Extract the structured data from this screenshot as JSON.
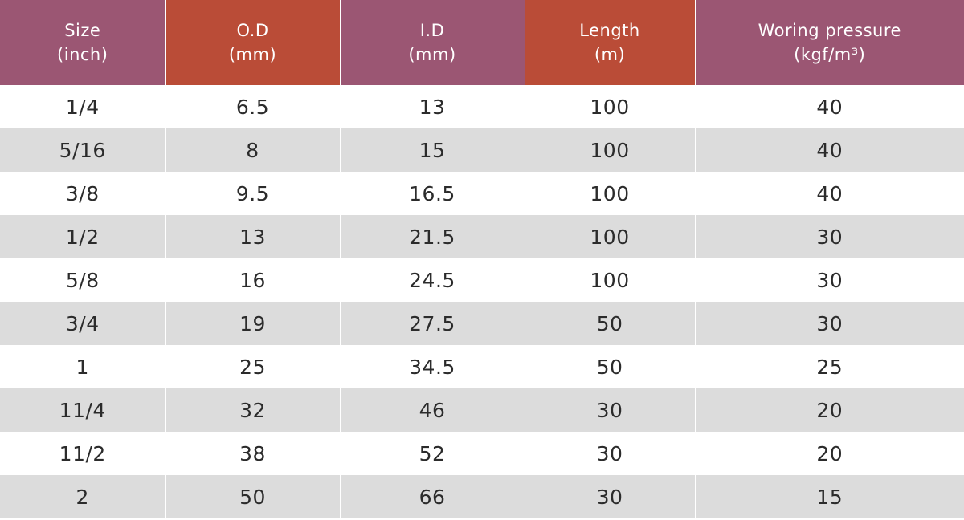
{
  "colors": {
    "header_purple": "#9b5673",
    "header_orange": "#ba4c37",
    "row_stripe": "#dcdcdc"
  },
  "table": {
    "headers": [
      {
        "line1": "Size",
        "line2": "(inch)"
      },
      {
        "line1": "O.D",
        "line2": "(mm)"
      },
      {
        "line1": "I.D",
        "line2": "(mm)"
      },
      {
        "line1": "Length",
        "line2": "(m)"
      },
      {
        "line1": "Woring pressure",
        "line2": "(kgf/m³)"
      }
    ],
    "rows": [
      [
        "1/4",
        "6.5",
        "13",
        "100",
        "40"
      ],
      [
        "5/16",
        "8",
        "15",
        "100",
        "40"
      ],
      [
        "3/8",
        "9.5",
        "16.5",
        "100",
        "40"
      ],
      [
        "1/2",
        "13",
        "21.5",
        "100",
        "30"
      ],
      [
        "5/8",
        "16",
        "24.5",
        "100",
        "30"
      ],
      [
        "3/4",
        "19",
        "27.5",
        "50",
        "30"
      ],
      [
        "1",
        "25",
        "34.5",
        "50",
        "25"
      ],
      [
        "11/4",
        "32",
        "46",
        "30",
        "20"
      ],
      [
        "11/2",
        "38",
        "52",
        "30",
        "20"
      ],
      [
        "2",
        "50",
        "66",
        "30",
        "15"
      ]
    ]
  }
}
